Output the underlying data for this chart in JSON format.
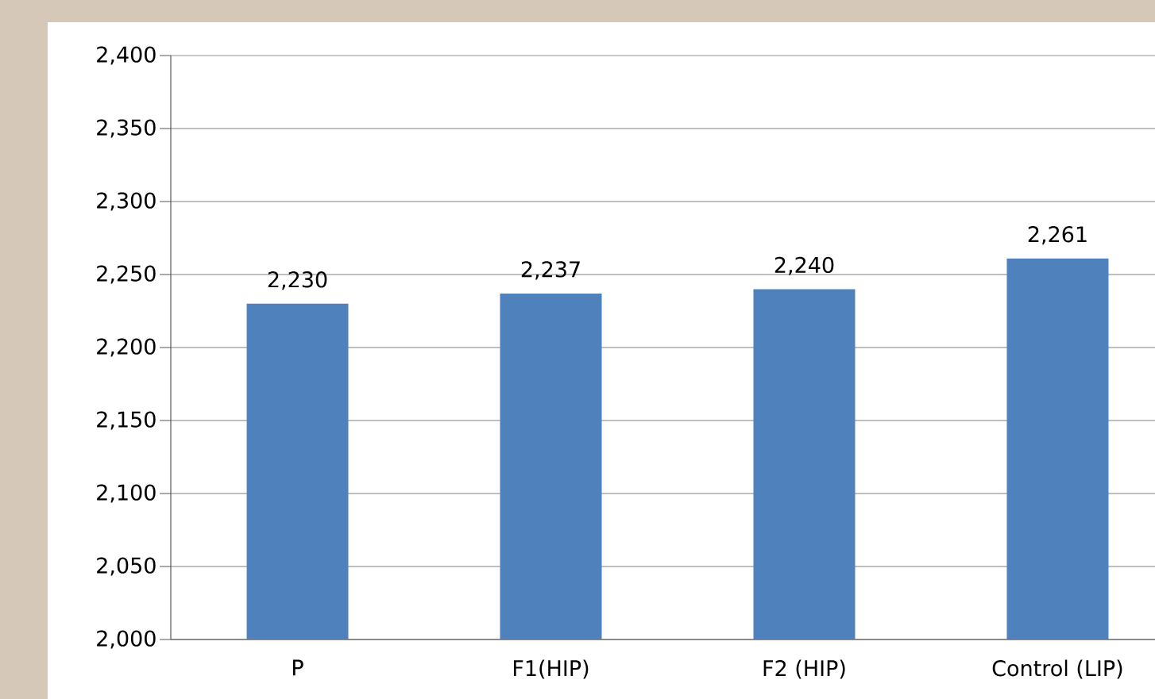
{
  "chart_data": {
    "type": "bar",
    "categories": [
      "P",
      "F1(HIP)",
      "F2 (HIP)",
      "Control (LIP)"
    ],
    "values": [
      2230,
      2237,
      2240,
      2261
    ],
    "value_labels": [
      "2,230",
      "2,237",
      "2,240",
      "2,261"
    ],
    "color": "#4f81bd",
    "ylim": [
      2000,
      2400
    ],
    "yticks": [
      {
        "value": 2000,
        "label": "2,000"
      },
      {
        "value": 2050,
        "label": "2,050"
      },
      {
        "value": 2100,
        "label": "2,100"
      },
      {
        "value": 2150,
        "label": "2,150"
      },
      {
        "value": 2200,
        "label": "2,200"
      },
      {
        "value": 2250,
        "label": "2,250"
      },
      {
        "value": 2300,
        "label": "2,300"
      },
      {
        "value": 2350,
        "label": "2,350"
      },
      {
        "value": 2400,
        "label": "2,400"
      }
    ],
    "grid": "y"
  }
}
